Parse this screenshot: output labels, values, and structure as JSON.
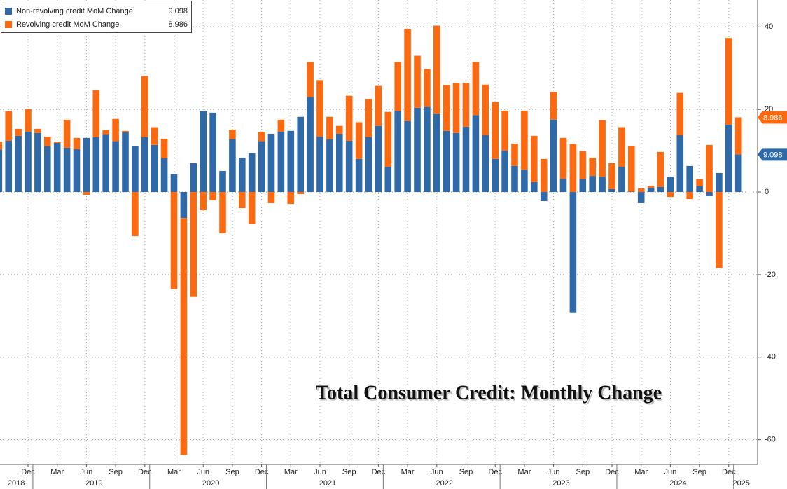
{
  "chart_data": {
    "type": "bar",
    "stacked": true,
    "title": "Total Consumer Credit: Monthly Change",
    "categories": [
      null,
      null,
      null,
      "Dec",
      null,
      null,
      "Mar",
      null,
      null,
      "Jun",
      null,
      null,
      "Sep",
      null,
      null,
      "Dec",
      null,
      null,
      "Mar",
      null,
      null,
      "Jun",
      null,
      null,
      "Sep",
      null,
      null,
      "Dec",
      null,
      null,
      "Mar",
      null,
      null,
      "Jun",
      null,
      null,
      "Sep",
      null,
      null,
      "Dec",
      null,
      null,
      "Mar",
      null,
      null,
      "Jun",
      null,
      null,
      "Sep",
      null,
      null,
      "Dec",
      null,
      null,
      "Mar",
      null,
      null,
      "Jun",
      null,
      null,
      "Sep",
      null,
      null,
      "Dec",
      null,
      null,
      "Mar",
      null,
      null,
      "Jun",
      null,
      null,
      "Sep",
      null,
      null,
      "Dec",
      null
    ],
    "years": [
      "2018",
      "2019",
      "2020",
      "2021",
      "2022",
      "2023",
      "2024",
      "2025"
    ],
    "series": [
      {
        "name": "Non-revolving credit MoM Change",
        "color": "#2f69a8",
        "values": [
          10.3,
          12.4,
          13.6,
          14.6,
          14.3,
          11.1,
          11.9,
          10.7,
          10.4,
          13.1,
          13.3,
          14.0,
          12.3,
          14.5,
          11.2,
          13.3,
          11.4,
          8.2,
          4.3,
          -6.3,
          7.0,
          19.6,
          19.2,
          5.1,
          12.8,
          8.3,
          9.4,
          12.3,
          14.1,
          14.6,
          14.8,
          18.2,
          23.0,
          13.4,
          12.8,
          14.1,
          12.4,
          8.0,
          13.3,
          16.0,
          6.1,
          19.6,
          17.2,
          20.4,
          20.6,
          18.9,
          14.8,
          14.3,
          15.8,
          18.6,
          13.8,
          8.0,
          10.0,
          6.3,
          5.4,
          2.4,
          -2.2,
          17.5,
          3.2,
          -29.3,
          3.1,
          3.9,
          3.7,
          0.7,
          6.1,
          0.1,
          -2.7,
          1.0,
          1.2,
          3.7,
          13.8,
          6.3,
          1.4,
          -1.0,
          4.6,
          16.3,
          9.098
        ]
      },
      {
        "name": "Revolving credit MoM Change",
        "color": "#fb6a10",
        "values": [
          1.9,
          7.2,
          1.7,
          5.5,
          1.0,
          2.3,
          0.3,
          6.8,
          2.7,
          -0.7,
          11.4,
          1.0,
          5.4,
          0.3,
          -10.7,
          14.8,
          4.3,
          4.7,
          -23.5,
          -57.4,
          -25.4,
          -4.4,
          -2.0,
          -10.0,
          2.3,
          -3.9,
          -7.8,
          2.3,
          -2.7,
          2.9,
          -2.9,
          -0.5,
          8.5,
          13.7,
          5.4,
          1.9,
          10.9,
          8.9,
          9.2,
          9.7,
          13.3,
          11.9,
          22.3,
          12.6,
          9.2,
          21.4,
          11.1,
          12.1,
          10.6,
          12.9,
          12.2,
          13.8,
          9.7,
          5.4,
          14.3,
          11.2,
          8.0,
          6.7,
          9.9,
          11.6,
          6.8,
          4.4,
          13.7,
          6.3,
          9.6,
          11.1,
          0.9,
          0.5,
          8.5,
          -1.2,
          10.2,
          -1.7,
          1.7,
          11.4,
          -18.4,
          21.0,
          8.986
        ]
      }
    ],
    "ylim": [
      -66,
      46.5
    ],
    "yticks": [
      40,
      20,
      0,
      -20,
      -40,
      -60
    ],
    "grid": true,
    "legend": "top-left"
  }
}
